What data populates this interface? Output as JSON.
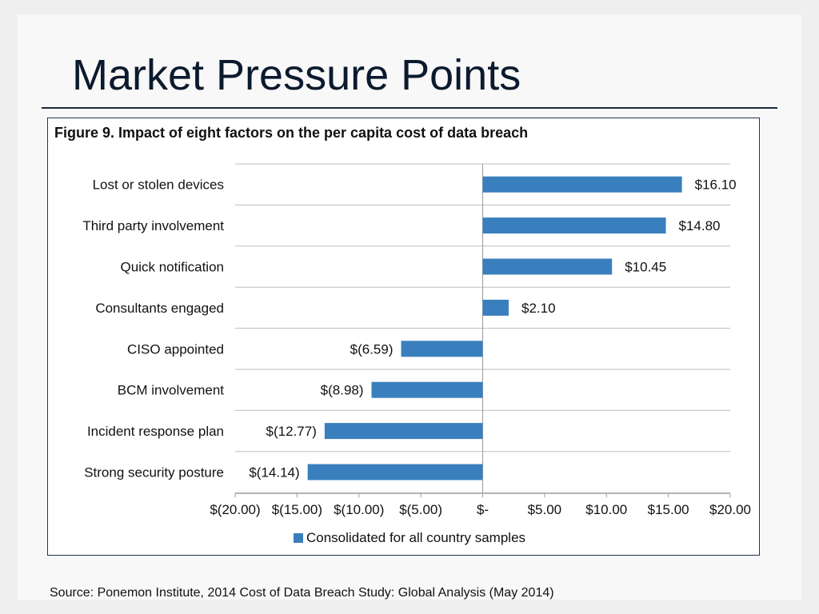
{
  "slide": {
    "title": "Market Pressure Points",
    "source": "Source: Ponemon Institute,  2014 Cost of Data Breach Study: Global Analysis (May 2014)"
  },
  "chart_data": {
    "type": "bar",
    "orientation": "horizontal",
    "title": "Figure 9. Impact of eight factors on the per capita cost of data breach",
    "categories": [
      "Lost or stolen devices",
      "Third party involvement",
      "Quick notification",
      "Consultants engaged",
      "CISO appointed",
      "BCM involvement",
      "Incident response plan",
      "Strong security posture"
    ],
    "series": [
      {
        "name": "Consolidated for all country samples",
        "values": [
          16.1,
          14.8,
          10.45,
          2.1,
          -6.59,
          -8.98,
          -12.77,
          -14.14
        ],
        "labels": [
          "$16.10",
          "$14.80",
          "$10.45",
          "$2.10",
          "$(6.59)",
          "$(8.98)",
          "$(12.77)",
          "$(14.14)"
        ],
        "color": "#3a7fbd"
      }
    ],
    "xlim": [
      -20,
      20
    ],
    "x_ticks": [
      -20,
      -15,
      -10,
      -5,
      0,
      5,
      10,
      15,
      20
    ],
    "x_tick_labels": [
      "$(20.00)",
      "$(15.00)",
      "$(10.00)",
      "$(5.00)",
      "$-",
      "$5.00",
      "$10.00",
      "$15.00",
      "$20.00"
    ],
    "xlabel": "",
    "ylabel": "",
    "grid": true,
    "legend_position": "bottom"
  }
}
